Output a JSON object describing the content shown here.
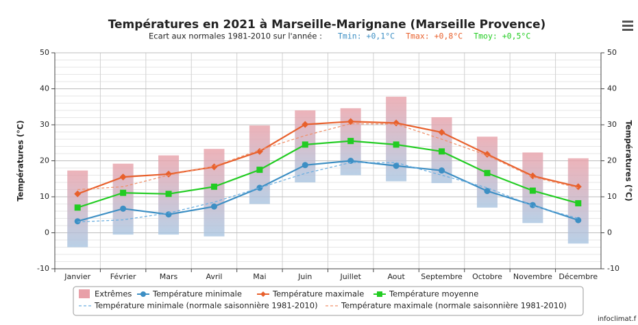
{
  "chart_data": {
    "type": "line",
    "title": "Températures en 2021 à Marseille-Marignane (Marseille Provence)",
    "subtitle": "Ecart aux normales 1981-2010 sur l'année :",
    "annotations": [
      {
        "text": "Tmin: +0,1°C",
        "color": "#3d8fc4"
      },
      {
        "text": "Tmax: +0,8°C",
        "color": "#e8602c"
      },
      {
        "text": "Tmoy: +0,5°C",
        "color": "#22cc22"
      }
    ],
    "y_label": "Températures (°C)",
    "y2_label": "Températures (°C)",
    "categories": [
      "Janvier",
      "Février",
      "Mars",
      "Avril",
      "Mai",
      "Juin",
      "Juillet",
      "Aout",
      "Septembre",
      "Octobre",
      "Novembre",
      "Décembre"
    ],
    "ylim": [
      -10,
      50
    ],
    "yticks": [
      -10,
      0,
      10,
      20,
      30,
      40,
      50
    ],
    "y2lim": [
      -10,
      50
    ],
    "y2ticks": [
      -10,
      0,
      10,
      20,
      30,
      40,
      50
    ],
    "grid": true,
    "series": [
      {
        "name": "Extrêmes",
        "type": "range",
        "color": "#e8a0a8",
        "color_low": "#a8c4e0",
        "low": [
          -4,
          -0.5,
          -0.5,
          -1,
          8,
          14,
          16,
          14.3,
          13.8,
          7,
          2.7,
          -3
        ],
        "high": [
          17.3,
          19.2,
          21.5,
          23.3,
          29.8,
          34,
          34.6,
          37.8,
          32.1,
          26.7,
          22.3,
          20.7
        ]
      },
      {
        "name": "Température minimale",
        "marker": "circle",
        "color": "#3d8fc4",
        "values": [
          3.2,
          6.7,
          5.1,
          7.3,
          12.5,
          18.8,
          20.0,
          18.6,
          17.3,
          11.6,
          7.7,
          3.5
        ]
      },
      {
        "name": "Température maximale",
        "marker": "diamond",
        "color": "#e8602c",
        "values": [
          10.8,
          15.5,
          16.3,
          18.3,
          22.6,
          30.1,
          30.9,
          30.5,
          27.9,
          21.8,
          15.8,
          12.8
        ]
      },
      {
        "name": "Température moyenne",
        "marker": "square",
        "color": "#22cc22",
        "values": [
          7.0,
          11.1,
          10.8,
          12.8,
          17.5,
          24.5,
          25.5,
          24.5,
          22.6,
          16.6,
          11.7,
          8.2
        ]
      },
      {
        "name": "Température minimale (normale saisonnière 1981-2010)",
        "dashed": true,
        "color": "#6aaee0",
        "values": [
          3,
          3.6,
          5.5,
          8.5,
          12.5,
          16.5,
          19.5,
          19.5,
          16,
          12.5,
          7.5,
          4
        ]
      },
      {
        "name": "Température maximale (normale saisonnière 1981-2010)",
        "dashed": true,
        "color": "#f0906a",
        "values": [
          12,
          12.8,
          16,
          18.5,
          23,
          27,
          30.3,
          30.2,
          26,
          21.5,
          15.5,
          12.5
        ]
      }
    ],
    "credit": "infoclimat.f"
  }
}
